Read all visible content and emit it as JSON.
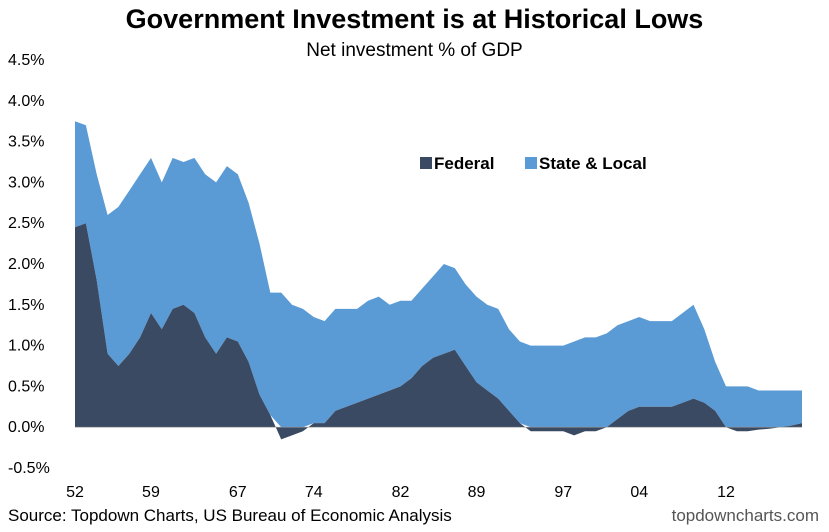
{
  "chart_data": {
    "type": "area",
    "stacked": true,
    "title": "Government Investment is at Historical Lows",
    "subtitle": "Net investment % of GDP",
    "ylim": [
      -0.5,
      4.5
    ],
    "yticks": [
      -0.5,
      0.0,
      0.5,
      1.0,
      1.5,
      2.0,
      2.5,
      3.0,
      3.5,
      4.0,
      4.5
    ],
    "ytick_labels": [
      "-0.5%",
      "0.0%",
      "0.5%",
      "1.0%",
      "1.5%",
      "2.0%",
      "2.5%",
      "3.0%",
      "3.5%",
      "4.0%",
      "4.5%"
    ],
    "xlim": [
      1952,
      2019
    ],
    "xticks": [
      1952,
      1959,
      1967,
      1974,
      1982,
      1989,
      1997,
      2004,
      2012
    ],
    "xtick_labels": [
      "52",
      "59",
      "67",
      "74",
      "82",
      "89",
      "97",
      "04",
      "12"
    ],
    "legend_position": "top-right",
    "grid": false,
    "colors": {
      "federal": "#3b4a63",
      "state_local": "#5b9bd5"
    },
    "x": [
      1952,
      1953,
      1954,
      1955,
      1956,
      1957,
      1958,
      1959,
      1960,
      1961,
      1962,
      1963,
      1964,
      1965,
      1966,
      1967,
      1968,
      1969,
      1970,
      1971,
      1972,
      1973,
      1974,
      1975,
      1976,
      1977,
      1978,
      1979,
      1980,
      1981,
      1982,
      1983,
      1984,
      1985,
      1986,
      1987,
      1988,
      1989,
      1990,
      1991,
      1992,
      1993,
      1994,
      1995,
      1996,
      1997,
      1998,
      1999,
      2000,
      2001,
      2002,
      2003,
      2004,
      2005,
      2006,
      2007,
      2008,
      2009,
      2010,
      2011,
      2012,
      2013,
      2014,
      2015,
      2016,
      2017,
      2018,
      2019
    ],
    "series": [
      {
        "name": "Federal",
        "values": [
          2.45,
          2.5,
          1.8,
          0.9,
          0.75,
          0.9,
          1.1,
          1.4,
          1.2,
          1.45,
          1.5,
          1.4,
          1.1,
          0.9,
          1.1,
          1.05,
          0.8,
          0.4,
          0.15,
          -0.15,
          -0.1,
          -0.05,
          0.05,
          0.05,
          0.2,
          0.25,
          0.3,
          0.35,
          0.4,
          0.45,
          0.5,
          0.6,
          0.75,
          0.85,
          0.9,
          0.95,
          0.75,
          0.55,
          0.45,
          0.35,
          0.2,
          0.05,
          -0.05,
          -0.05,
          -0.05,
          -0.05,
          -0.1,
          -0.05,
          -0.05,
          0.0,
          0.1,
          0.2,
          0.25,
          0.25,
          0.25,
          0.25,
          0.3,
          0.35,
          0.3,
          0.2,
          0.0,
          -0.05,
          -0.05,
          -0.03,
          -0.02,
          0.0,
          0.02,
          0.05
        ]
      },
      {
        "name": "State & Local",
        "values": [
          1.3,
          1.2,
          1.3,
          1.7,
          1.95,
          2.0,
          2.0,
          1.9,
          1.8,
          1.85,
          1.75,
          1.9,
          2.0,
          2.1,
          2.1,
          2.05,
          1.95,
          1.85,
          1.5,
          1.65,
          1.5,
          1.45,
          1.3,
          1.25,
          1.25,
          1.2,
          1.15,
          1.2,
          1.2,
          1.05,
          1.05,
          0.95,
          0.95,
          1.0,
          1.1,
          1.0,
          1.0,
          1.05,
          1.05,
          1.1,
          1.0,
          1.0,
          1.0,
          1.0,
          1.0,
          1.0,
          1.05,
          1.1,
          1.1,
          1.15,
          1.15,
          1.1,
          1.1,
          1.05,
          1.05,
          1.05,
          1.1,
          1.15,
          0.9,
          0.6,
          0.5,
          0.5,
          0.5,
          0.45,
          0.45,
          0.45,
          0.43,
          0.4
        ]
      }
    ]
  },
  "header": {
    "title": "Government Investment is at Historical Lows",
    "subtitle": "Net investment % of GDP"
  },
  "footer": {
    "source": "Source: Topdown Charts, US Bureau of Economic Analysis",
    "site": "topdowncharts.com"
  }
}
